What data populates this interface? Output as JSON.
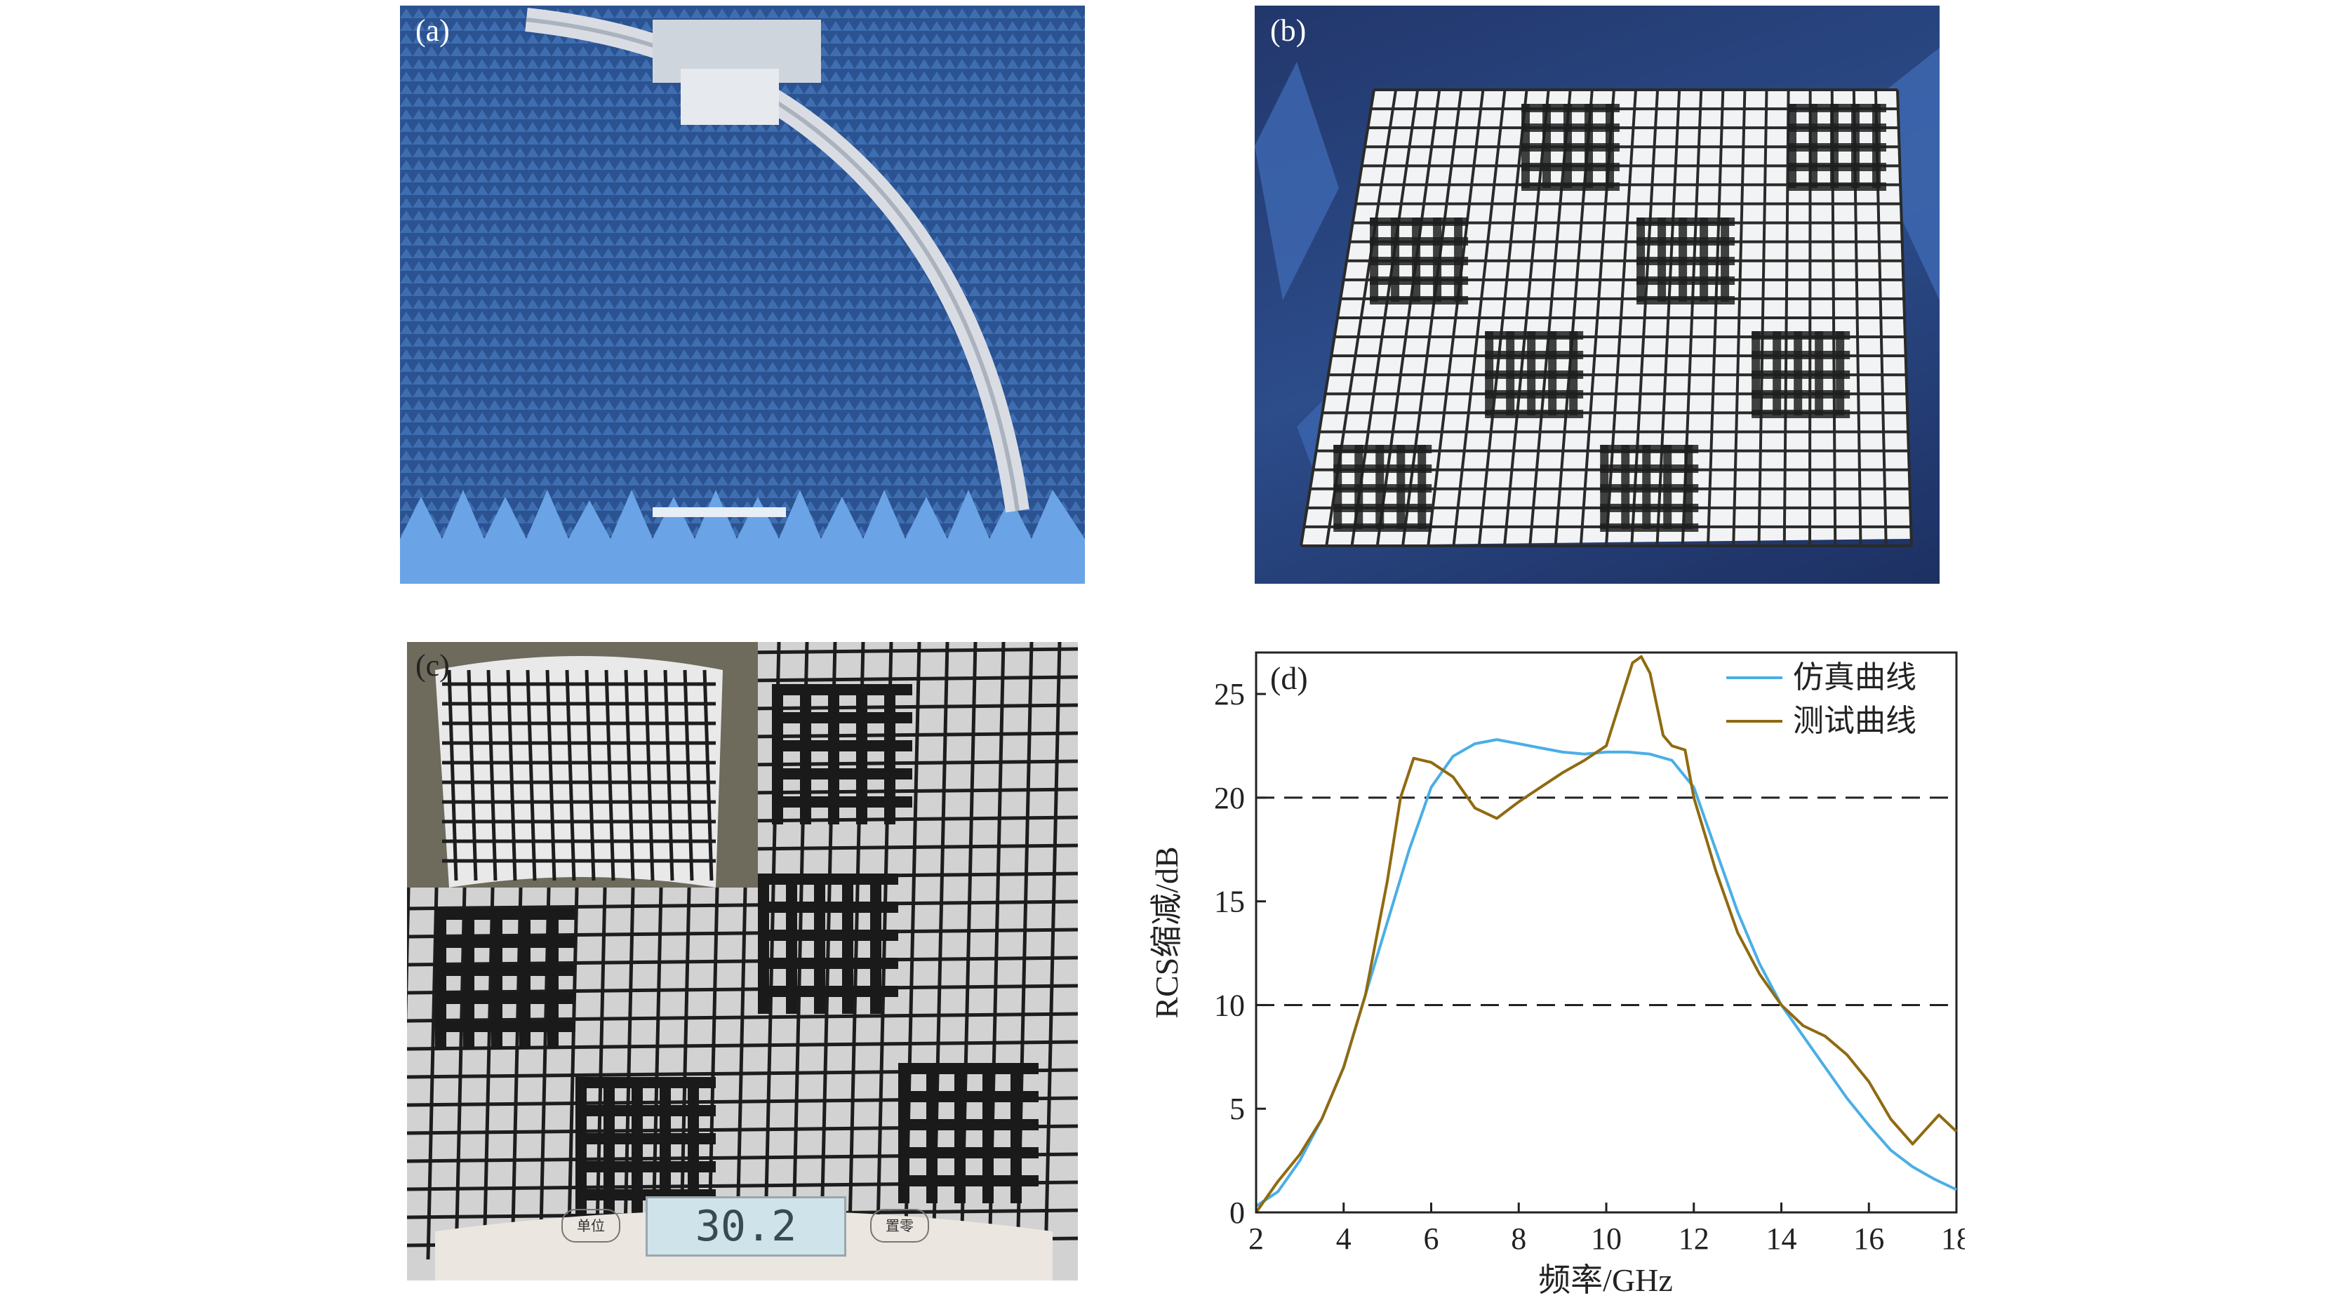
{
  "panels": {
    "a": {
      "label": "(a)"
    },
    "b": {
      "label": "(b)"
    },
    "c": {
      "label": "(c)",
      "scale_reading": "30.2",
      "scale_button_left": "单位",
      "scale_button_right": "置零"
    },
    "d": {
      "label": "(d)"
    }
  },
  "chart_data": {
    "type": "line",
    "title": "",
    "xlabel": "频率/GHz",
    "ylabel": "RCS缩减/dB",
    "xlim": [
      2,
      18
    ],
    "ylim": [
      0,
      27
    ],
    "xticks": [
      2,
      4,
      6,
      8,
      10,
      12,
      14,
      16,
      18
    ],
    "yticks": [
      0,
      5,
      10,
      15,
      20,
      25
    ],
    "grid": false,
    "legend_position": "top-right",
    "reference_lines": [
      20,
      10
    ],
    "series": [
      {
        "name": "仿真曲线",
        "color": "#4aaee6",
        "x": [
          2.0,
          2.5,
          3.0,
          3.5,
          4.0,
          4.5,
          5.0,
          5.5,
          6.0,
          6.5,
          7.0,
          7.5,
          8.0,
          8.5,
          9.0,
          9.5,
          10.0,
          10.5,
          11.0,
          11.5,
          12.0,
          12.5,
          13.0,
          13.5,
          14.0,
          14.5,
          15.0,
          15.5,
          16.0,
          16.5,
          17.0,
          17.5,
          18.0
        ],
        "y": [
          0.3,
          1.0,
          2.5,
          4.5,
          7.0,
          10.5,
          14.0,
          17.5,
          20.5,
          22.0,
          22.6,
          22.8,
          22.6,
          22.4,
          22.2,
          22.1,
          22.2,
          22.2,
          22.1,
          21.8,
          20.5,
          17.5,
          14.5,
          12.0,
          10.0,
          8.5,
          7.0,
          5.5,
          4.2,
          3.0,
          2.2,
          1.6,
          1.1
        ]
      },
      {
        "name": "测试曲线",
        "color": "#8f6a10",
        "x": [
          2.0,
          2.5,
          3.0,
          3.5,
          4.0,
          4.5,
          5.0,
          5.3,
          5.6,
          6.0,
          6.5,
          7.0,
          7.5,
          8.0,
          8.5,
          9.0,
          9.5,
          10.0,
          10.3,
          10.6,
          10.8,
          11.0,
          11.3,
          11.5,
          11.8,
          12.0,
          12.5,
          13.0,
          13.5,
          14.0,
          14.5,
          15.0,
          15.5,
          16.0,
          16.5,
          17.0,
          17.3,
          17.6,
          18.0
        ],
        "y": [
          0.0,
          1.5,
          2.8,
          4.5,
          7.0,
          10.5,
          16.0,
          20.0,
          21.9,
          21.7,
          21.0,
          19.5,
          19.0,
          19.8,
          20.5,
          21.2,
          21.8,
          22.5,
          24.5,
          26.5,
          26.8,
          26.0,
          23.0,
          22.5,
          22.3,
          20.0,
          16.5,
          13.5,
          11.5,
          10.0,
          9.0,
          8.5,
          7.6,
          6.3,
          4.5,
          3.3,
          4.0,
          4.7,
          3.9
        ]
      }
    ]
  }
}
